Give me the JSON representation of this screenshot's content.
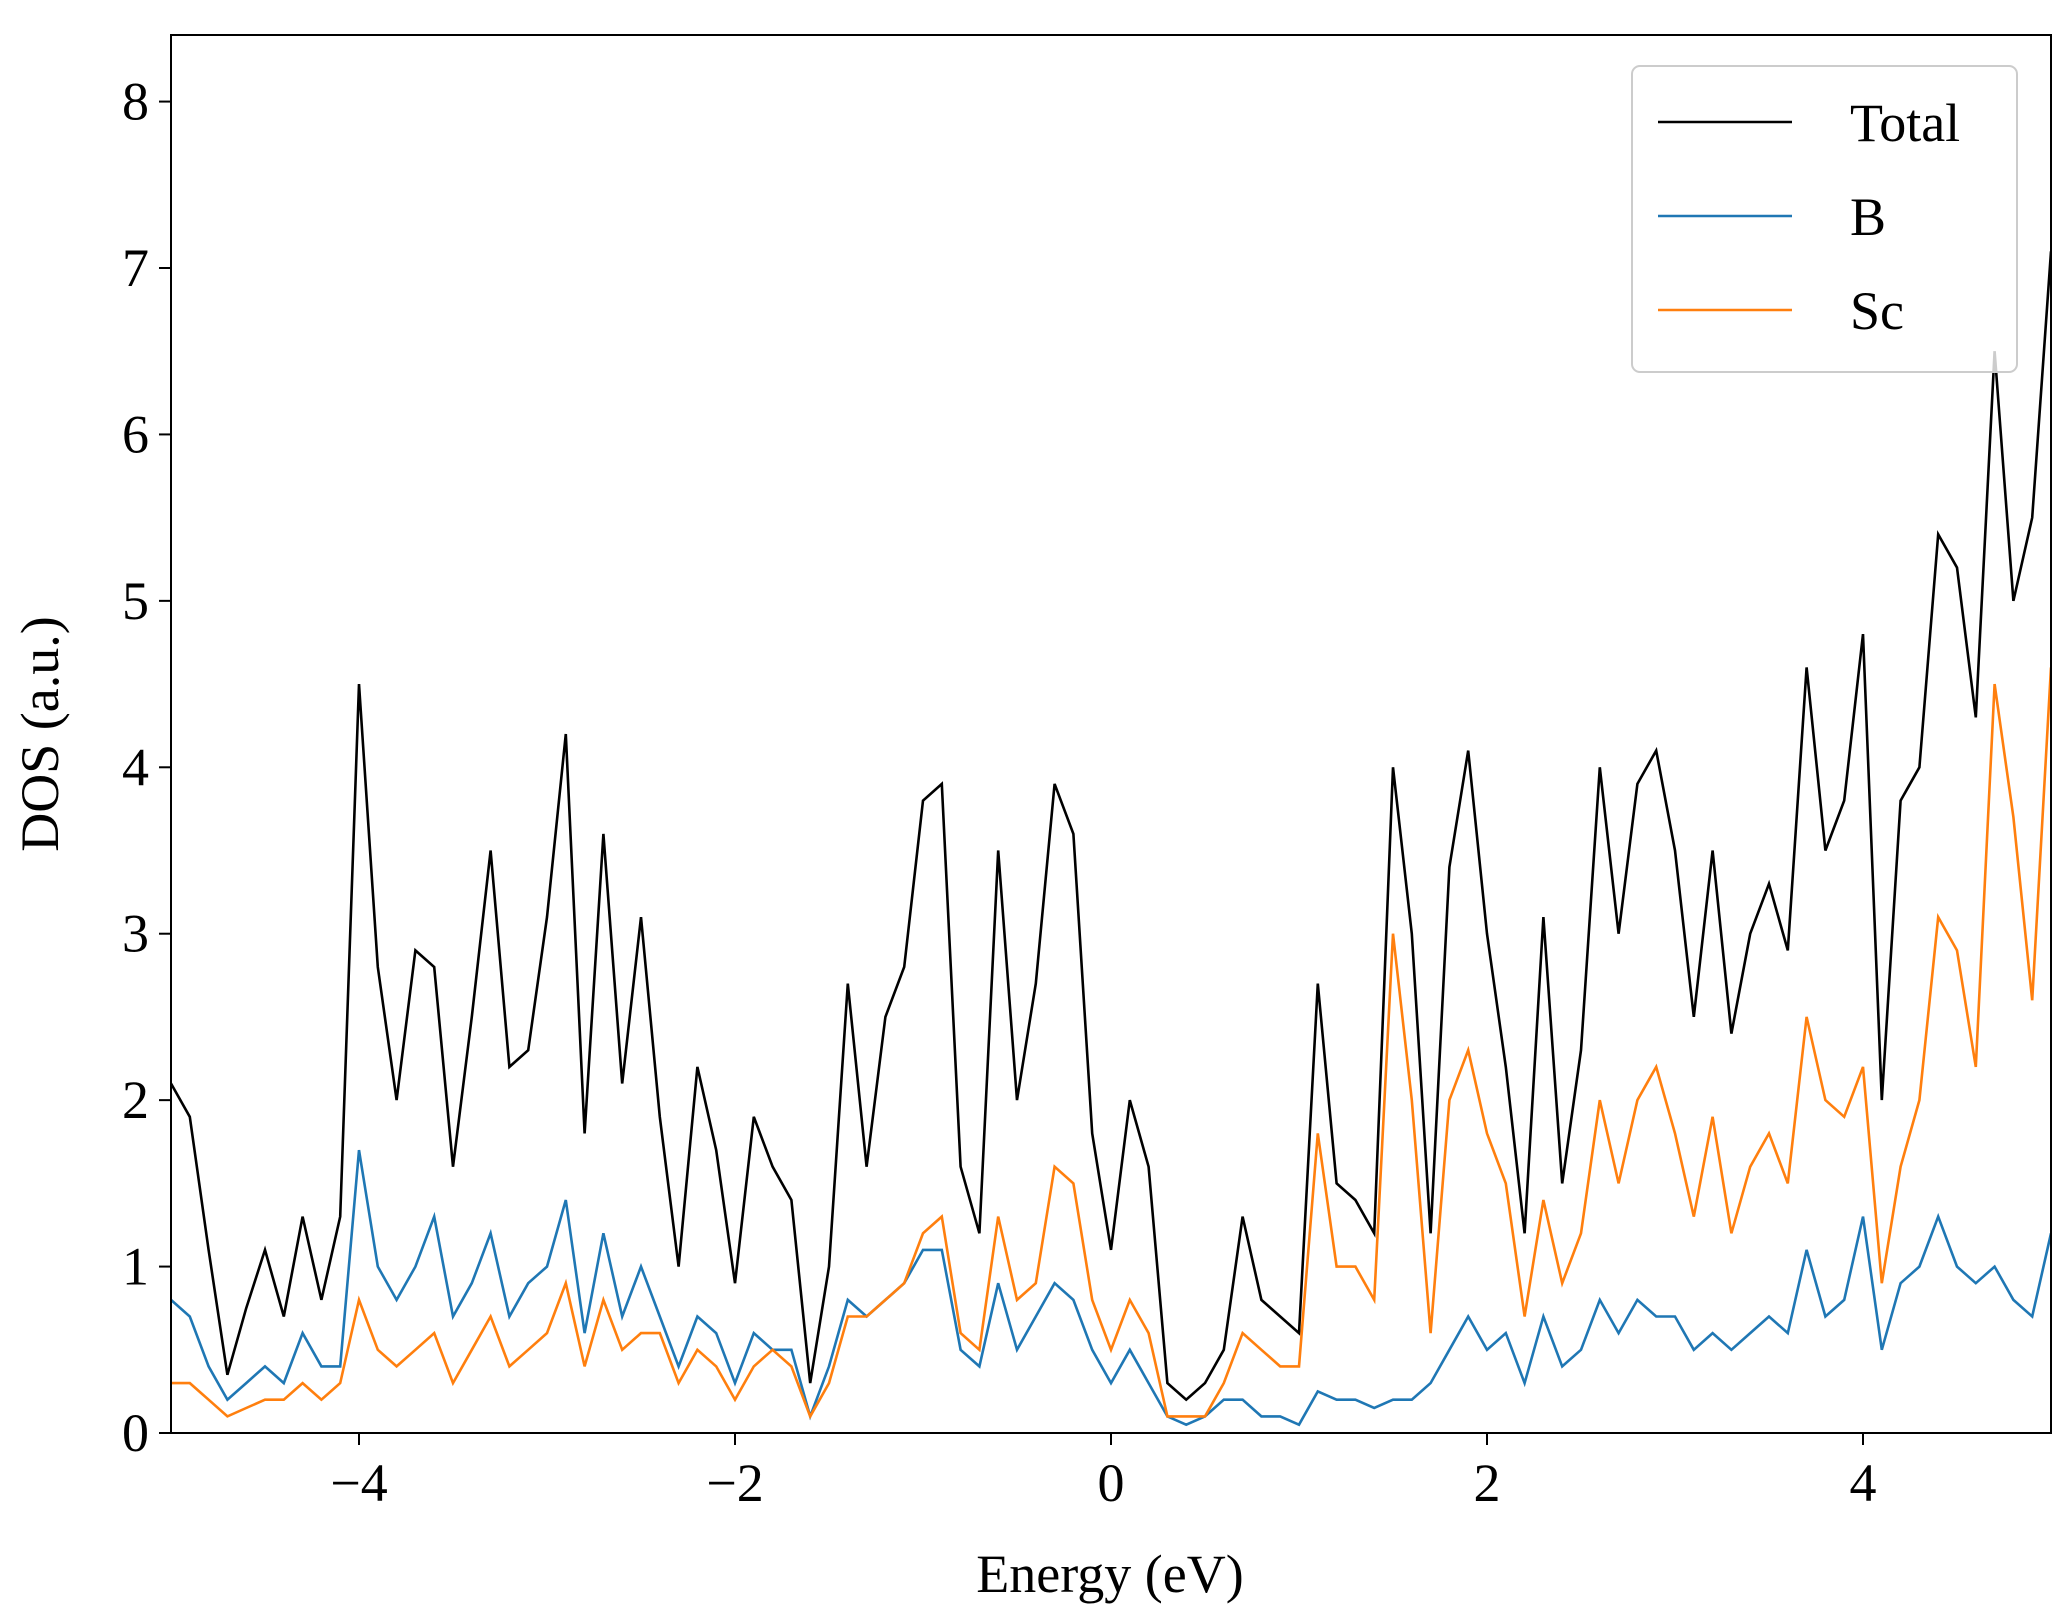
{
  "chart_data": {
    "type": "line",
    "x_label": "Energy (eV)",
    "y_label": "DOS (a.u.)",
    "x": [
      -5.0,
      -4.9,
      -4.8,
      -4.7,
      -4.6,
      -4.5,
      -4.4,
      -4.3,
      -4.2,
      -4.1,
      -4.0,
      -3.9,
      -3.8,
      -3.7,
      -3.6,
      -3.5,
      -3.4,
      -3.3,
      -3.2,
      -3.1,
      -3.0,
      -2.9,
      -2.8,
      -2.7,
      -2.6,
      -2.5,
      -2.4,
      -2.3,
      -2.2,
      -2.1,
      -2.0,
      -1.9,
      -1.8,
      -1.7,
      -1.6,
      -1.5,
      -1.4,
      -1.3,
      -1.2,
      -1.1,
      -1.0,
      -0.9,
      -0.8,
      -0.7,
      -0.6,
      -0.5,
      -0.4,
      -0.3,
      -0.2,
      -0.1,
      0.0,
      0.1,
      0.2,
      0.3,
      0.4,
      0.5,
      0.6,
      0.7,
      0.8,
      0.9,
      1.0,
      1.1,
      1.2,
      1.3,
      1.4,
      1.5,
      1.6,
      1.7,
      1.8,
      1.9,
      2.0,
      2.1,
      2.2,
      2.3,
      2.4,
      2.5,
      2.6,
      2.7,
      2.8,
      2.9,
      3.0,
      3.1,
      3.2,
      3.3,
      3.4,
      3.5,
      3.6,
      3.7,
      3.8,
      3.9,
      4.0,
      4.1,
      4.2,
      4.3,
      4.4,
      4.5,
      4.6,
      4.7,
      4.8,
      4.9,
      5.0
    ],
    "series": [
      {
        "name": "Total",
        "color": "#000000",
        "values": [
          2.1,
          1.9,
          1.1,
          0.35,
          0.75,
          1.1,
          0.7,
          1.3,
          0.8,
          1.3,
          4.5,
          2.8,
          2.0,
          2.9,
          2.8,
          1.6,
          2.5,
          3.5,
          2.2,
          2.3,
          3.1,
          4.2,
          1.8,
          3.6,
          2.1,
          3.1,
          1.9,
          1.0,
          2.2,
          1.7,
          0.9,
          1.9,
          1.6,
          1.4,
          0.3,
          1.0,
          2.7,
          1.6,
          2.5,
          2.8,
          3.8,
          3.9,
          1.6,
          1.2,
          3.5,
          2.0,
          2.7,
          3.9,
          3.6,
          1.8,
          1.1,
          2.0,
          1.6,
          0.3,
          0.2,
          0.3,
          0.5,
          1.3,
          0.8,
          0.7,
          0.6,
          2.7,
          1.5,
          1.4,
          1.2,
          4.0,
          3.0,
          1.2,
          3.4,
          4.1,
          3.0,
          2.2,
          1.2,
          3.1,
          1.5,
          2.3,
          4.0,
          3.0,
          3.9,
          4.1,
          3.5,
          2.5,
          3.5,
          2.4,
          3.0,
          3.3,
          2.9,
          4.6,
          3.5,
          3.8,
          4.8,
          2.0,
          3.8,
          4.0,
          5.4,
          5.2,
          4.3,
          6.5,
          5.0,
          5.5,
          7.1
        ]
      },
      {
        "name": "B",
        "color": "#1f77b4",
        "values": [
          0.8,
          0.7,
          0.4,
          0.2,
          0.3,
          0.4,
          0.3,
          0.6,
          0.4,
          0.4,
          1.7,
          1.0,
          0.8,
          1.0,
          1.3,
          0.7,
          0.9,
          1.2,
          0.7,
          0.9,
          1.0,
          1.4,
          0.6,
          1.2,
          0.7,
          1.0,
          0.7,
          0.4,
          0.7,
          0.6,
          0.3,
          0.6,
          0.5,
          0.5,
          0.1,
          0.4,
          0.8,
          0.7,
          0.8,
          0.9,
          1.1,
          1.1,
          0.5,
          0.4,
          0.9,
          0.5,
          0.7,
          0.9,
          0.8,
          0.5,
          0.3,
          0.5,
          0.3,
          0.1,
          0.05,
          0.1,
          0.2,
          0.2,
          0.1,
          0.1,
          0.05,
          0.25,
          0.2,
          0.2,
          0.15,
          0.2,
          0.2,
          0.3,
          0.5,
          0.7,
          0.5,
          0.6,
          0.3,
          0.7,
          0.4,
          0.5,
          0.8,
          0.6,
          0.8,
          0.7,
          0.7,
          0.5,
          0.6,
          0.5,
          0.6,
          0.7,
          0.6,
          1.1,
          0.7,
          0.8,
          1.3,
          0.5,
          0.9,
          1.0,
          1.3,
          1.0,
          0.9,
          1.0,
          0.8,
          0.7,
          1.2
        ]
      },
      {
        "name": "Sc",
        "color": "#ff7f0e",
        "values": [
          0.3,
          0.3,
          0.2,
          0.1,
          0.15,
          0.2,
          0.2,
          0.3,
          0.2,
          0.3,
          0.8,
          0.5,
          0.4,
          0.5,
          0.6,
          0.3,
          0.5,
          0.7,
          0.4,
          0.5,
          0.6,
          0.9,
          0.4,
          0.8,
          0.5,
          0.6,
          0.6,
          0.3,
          0.5,
          0.4,
          0.2,
          0.4,
          0.5,
          0.4,
          0.1,
          0.3,
          0.7,
          0.7,
          0.8,
          0.9,
          1.2,
          1.3,
          0.6,
          0.5,
          1.3,
          0.8,
          0.9,
          1.6,
          1.5,
          0.8,
          0.5,
          0.8,
          0.6,
          0.1,
          0.1,
          0.1,
          0.3,
          0.6,
          0.5,
          0.4,
          0.4,
          1.8,
          1.0,
          1.0,
          0.8,
          3.0,
          2.0,
          0.6,
          2.0,
          2.3,
          1.8,
          1.5,
          0.7,
          1.4,
          0.9,
          1.2,
          2.0,
          1.5,
          2.0,
          2.2,
          1.8,
          1.3,
          1.9,
          1.2,
          1.6,
          1.8,
          1.5,
          2.5,
          2.0,
          1.9,
          2.2,
          0.9,
          1.6,
          2.0,
          3.1,
          2.9,
          2.2,
          4.5,
          3.7,
          2.6,
          4.6
        ]
      }
    ],
    "xlim": [
      -5,
      5
    ],
    "ylim": [
      0,
      8.4
    ],
    "xticks": [
      {
        "value": -4,
        "label": "−4"
      },
      {
        "value": -2,
        "label": "−2"
      },
      0,
      2,
      4
    ],
    "yticks": [
      0,
      1,
      2,
      3,
      4,
      5,
      6,
      7,
      8
    ],
    "legend": "upper right",
    "grid": false
  }
}
